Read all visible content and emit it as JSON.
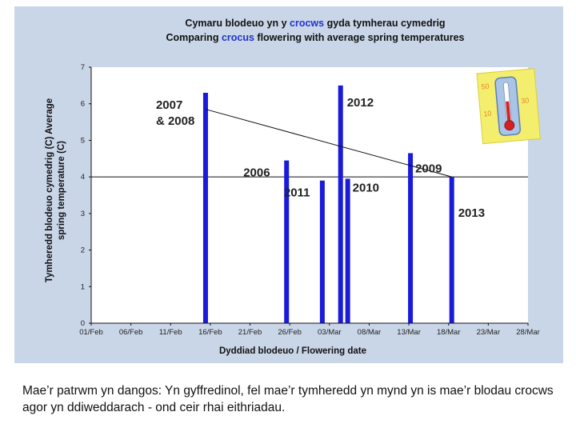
{
  "chart_data": {
    "type": "bar",
    "title_cy_prefix": "Cymaru blodeuo yn y ",
    "title_cy_accent": "crocws",
    "title_cy_suffix": " gyda tymherau cymedrig",
    "title_en_prefix": "Comparing ",
    "title_en_accent": "crocus",
    "title_en_suffix": " flowering with average spring temperatures",
    "ylabel_line1": "Tymheredd blodeuo cymedrig (C) Average",
    "ylabel_line2": "spring temperature (C)",
    "xlabel": "Dyddiad blodeuo / Flowering date",
    "ylim": [
      0,
      7
    ],
    "y_ticks": [
      "0",
      "1",
      "2",
      "3",
      "4",
      "5",
      "6",
      "7"
    ],
    "x_ticks": [
      "01/Feb",
      "06/Feb",
      "11/Feb",
      "16/Feb",
      "21/Feb",
      "26/Feb",
      "03/Mar",
      "08/Mar",
      "13/Mar",
      "18/Mar",
      "23/Mar",
      "28/Mar"
    ],
    "x_tick_days": [
      0,
      5,
      10,
      15,
      20,
      25,
      30,
      35,
      40,
      45,
      50,
      55
    ],
    "x_range_days": [
      0,
      55
    ],
    "bars": [
      {
        "label": "2007\n& 2008",
        "date": "15/Feb",
        "day": 14.4,
        "value": 6.3
      },
      {
        "label": "2006",
        "date": "25/Feb",
        "day": 24.6,
        "value": 4.45
      },
      {
        "label": "2011",
        "date": "02/Mar",
        "day": 29.1,
        "value": 3.9
      },
      {
        "label": "2012",
        "date": "04/Mar",
        "day": 31.4,
        "value": 6.5
      },
      {
        "label": "2010",
        "date": "05/Mar",
        "day": 32.3,
        "value": 3.95
      },
      {
        "label": "2009",
        "date": "13/Mar",
        "day": 40.2,
        "value": 4.65
      },
      {
        "label": "2013",
        "date": "18/Mar",
        "day": 45.4,
        "value": 4.0
      }
    ],
    "trendline": {
      "start": {
        "day": 14.4,
        "value": 5.85
      },
      "end": {
        "day": 45.4,
        "value": 4.0
      }
    },
    "reference_line": 4.0,
    "thermometer_scale": [
      "50",
      "30",
      "10"
    ],
    "colors": {
      "bar": "#1a1adb",
      "panel": "#c9d6e8",
      "plot": "#ffffff",
      "title_accent": "#2233cc",
      "trend": "#111111",
      "thermo_note": "#f4ee6e"
    }
  },
  "caption": {
    "lead": "Mae’r patrwm yn dangos",
    "body": ": Yn gyffredinol, fel mae’r tymheredd yn mynd yn is mae’r blodau crocws agor yn ddiweddarach - ond ceir rhai eithriadau."
  }
}
